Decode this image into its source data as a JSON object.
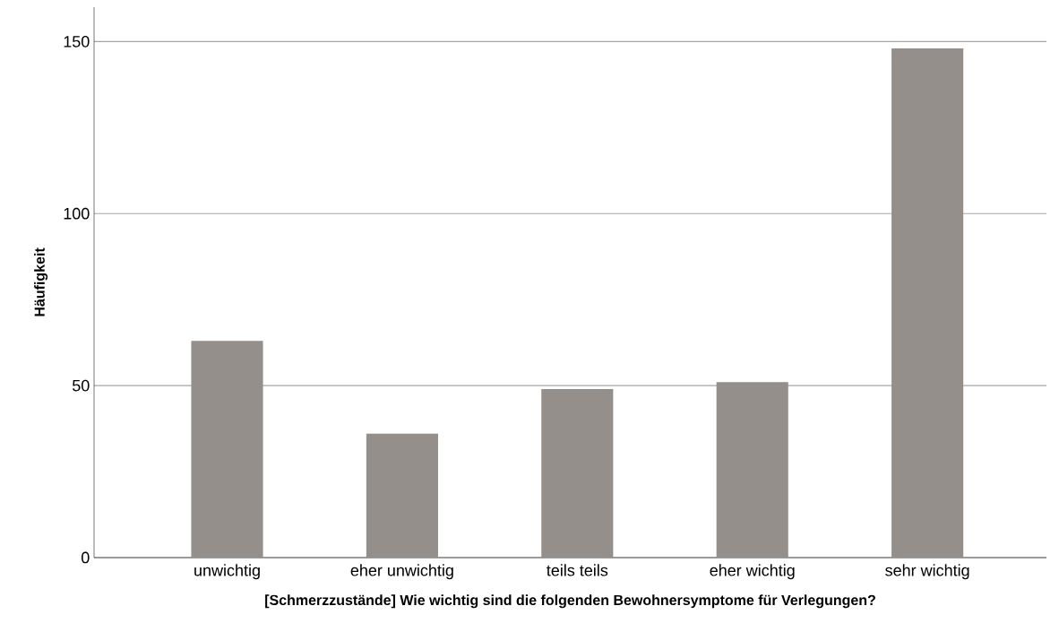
{
  "chart_data": {
    "type": "bar",
    "xlabel": "[Schmerzzustände] Wie wichtig sind die folgenden Bewohnersymptome für Verlegungen?",
    "ylabel": "Häufigkeit",
    "categories": [
      "unwichtig",
      "eher unwichtig",
      "teils teils",
      "eher wichtig",
      "sehr wichtig"
    ],
    "values": [
      63,
      36,
      49,
      51,
      148
    ],
    "color": "#958f8c",
    "ylim": [
      0,
      160
    ],
    "yticks": [
      0,
      50,
      100,
      150
    ],
    "grid": "y"
  }
}
